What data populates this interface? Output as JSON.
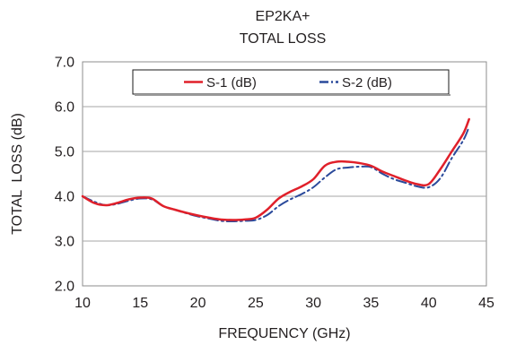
{
  "chart_data": {
    "type": "line",
    "title": "EP2KA+",
    "subtitle": "TOTAL LOSS",
    "xlabel": "FREQUENCY (GHz)",
    "ylabel": "TOTAL  LOSS (dB)",
    "xlim": [
      10,
      45
    ],
    "ylim": [
      2.0,
      7.0
    ],
    "xticks": [
      "10",
      "15",
      "20",
      "25",
      "30",
      "35",
      "40",
      "45"
    ],
    "yticks": [
      "2.0",
      "3.0",
      "4.0",
      "5.0",
      "6.0",
      "7.0"
    ],
    "grid": "horizontal",
    "legend_position": "top",
    "series": [
      {
        "name": "S-1 (dB)",
        "color": "#e0202a",
        "style": "solid",
        "x": [
          10,
          11,
          12,
          13,
          14,
          15,
          16,
          17,
          18,
          19,
          20,
          21,
          22,
          23,
          24,
          25,
          26,
          27,
          28,
          29,
          30,
          31,
          32,
          33,
          34,
          35,
          36,
          37,
          38,
          39,
          40,
          41,
          42,
          43,
          43.5
        ],
        "y": [
          4.0,
          3.85,
          3.8,
          3.85,
          3.93,
          3.97,
          3.95,
          3.78,
          3.7,
          3.63,
          3.57,
          3.52,
          3.48,
          3.47,
          3.48,
          3.52,
          3.7,
          3.95,
          4.1,
          4.22,
          4.38,
          4.68,
          4.77,
          4.77,
          4.74,
          4.68,
          4.55,
          4.45,
          4.35,
          4.27,
          4.27,
          4.6,
          5.0,
          5.4,
          5.72
        ]
      },
      {
        "name": "S-2 (dB)",
        "color": "#2b4a9b",
        "style": "dashdot",
        "x": [
          10,
          11,
          12,
          13,
          14,
          15,
          16,
          17,
          18,
          19,
          20,
          21,
          22,
          23,
          24,
          25,
          26,
          27,
          28,
          29,
          30,
          31,
          32,
          33,
          34,
          35,
          36,
          37,
          38,
          39,
          40,
          41,
          42,
          43,
          43.5
        ],
        "y": [
          4.0,
          3.88,
          3.8,
          3.83,
          3.9,
          3.95,
          3.93,
          3.78,
          3.7,
          3.62,
          3.55,
          3.5,
          3.45,
          3.44,
          3.45,
          3.47,
          3.58,
          3.78,
          3.93,
          4.05,
          4.2,
          4.42,
          4.6,
          4.64,
          4.66,
          4.65,
          4.5,
          4.38,
          4.3,
          4.22,
          4.2,
          4.4,
          4.85,
          5.25,
          5.55
        ]
      }
    ]
  }
}
